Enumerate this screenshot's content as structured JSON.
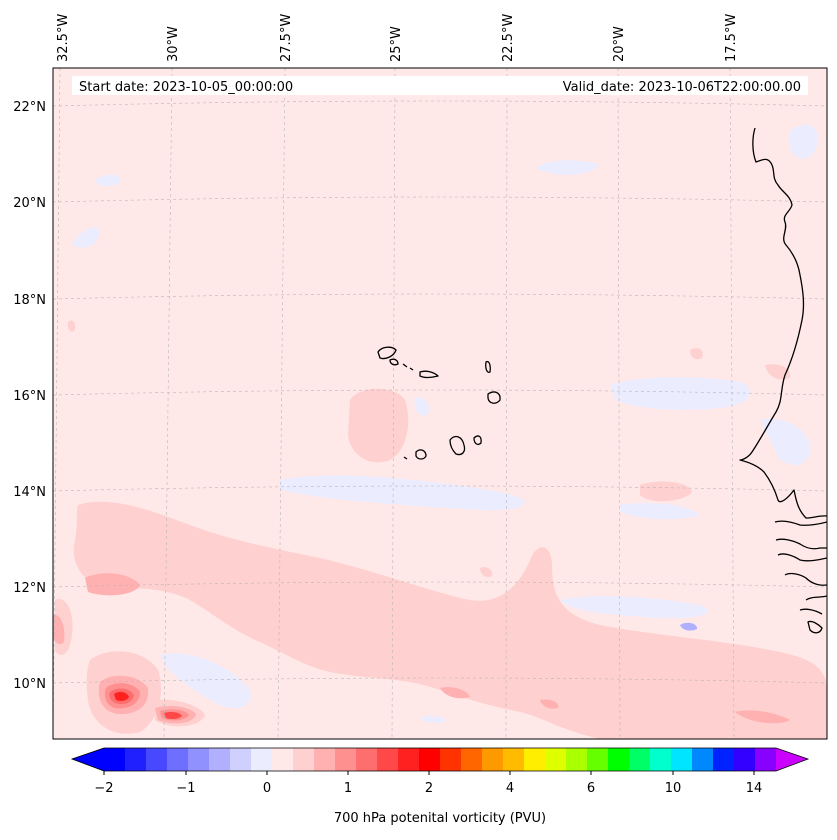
{
  "header": {
    "start_date": "Start date: 2023-10-05_00:00:00",
    "valid_date": "Valid_date: 2023-10-06T22:00:00.00"
  },
  "map": {
    "lon_labels": [
      "32.5°W",
      "30°W",
      "27.5°W",
      "25°W",
      "22.5°W",
      "20°W",
      "17.5°W"
    ],
    "lat_labels": [
      "22°N",
      "20°N",
      "18°N",
      "16°N",
      "14°N",
      "12°N",
      "10°N"
    ],
    "background_color": "#ffe8e8",
    "coastline_color": "#000000"
  },
  "colorbar": {
    "label": "700 hPa potenital vorticity (PVU)",
    "tick_labels": [
      "−2",
      "−1",
      "0",
      "1",
      "2",
      "4",
      "6",
      "10",
      "14"
    ],
    "colors": [
      "#0000ff",
      "#2020ff",
      "#4848ff",
      "#6e6eff",
      "#9090ff",
      "#b0b0ff",
      "#d0d0ff",
      "#ececff",
      "#ffe8e8",
      "#ffd0d0",
      "#ffb0b0",
      "#ff9090",
      "#ff6e6e",
      "#ff4848",
      "#ff2020",
      "#ff0000",
      "#ff3300",
      "#ff6600",
      "#ff9900",
      "#ffbb00",
      "#ffee00",
      "#ddff00",
      "#aaff00",
      "#66ff00",
      "#00ff00",
      "#00ff66",
      "#00ffcc",
      "#00e5ff",
      "#0088ff",
      "#0022ff",
      "#3300ff",
      "#8800ff"
    ],
    "under_color": "#0000ff",
    "over_color": "#cc00ff"
  }
}
